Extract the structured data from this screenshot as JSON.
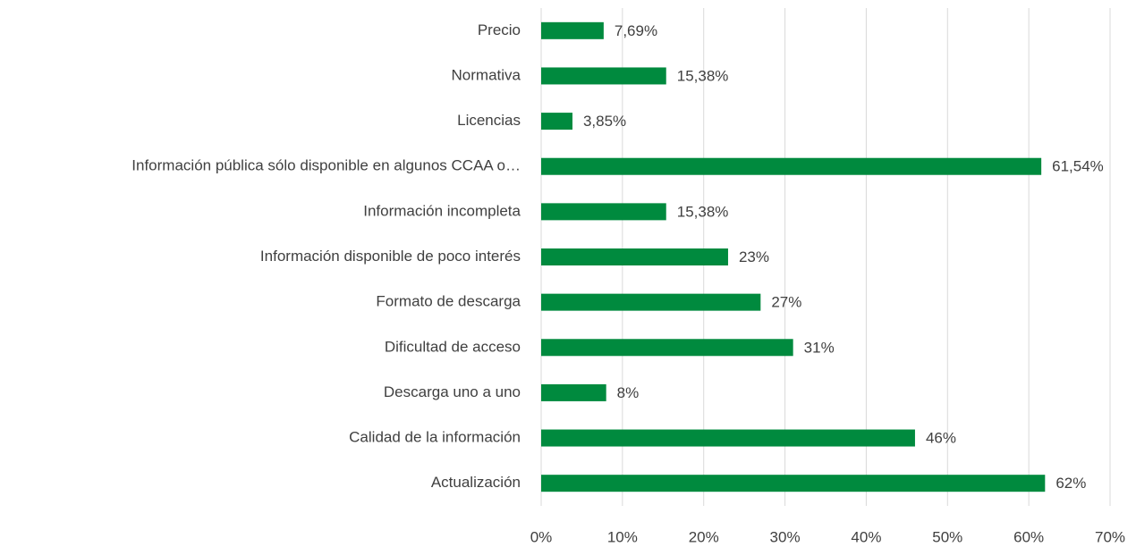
{
  "chart_data": {
    "type": "bar",
    "orientation": "horizontal",
    "categories": [
      "Precio",
      "Normativa",
      "Licencias",
      "Información pública sólo disponible en algunos CCAA o…",
      "Información incompleta",
      "Información disponible de poco interés",
      "Formato de descarga",
      "Dificultad de acceso",
      "Descarga uno a uno",
      "Calidad de la información",
      "Actualización"
    ],
    "values": [
      7.69,
      15.38,
      3.85,
      61.54,
      15.38,
      23,
      27,
      31,
      8,
      46,
      62
    ],
    "value_labels": [
      "7,69%",
      "15,38%",
      "3,85%",
      "61,54%",
      "15,38%",
      "23%",
      "27%",
      "31%",
      "8%",
      "46%",
      "62%"
    ],
    "color": "#008a3e",
    "xlim": [
      0,
      70
    ],
    "xticks": [
      {
        "value": 0,
        "label": "0%"
      },
      {
        "value": 10,
        "label": "10%"
      },
      {
        "value": 20,
        "label": "20%"
      },
      {
        "value": 30,
        "label": "30%"
      },
      {
        "value": 40,
        "label": "40%"
      },
      {
        "value": 50,
        "label": "50%"
      },
      {
        "value": 60,
        "label": "60%"
      },
      {
        "value": 70,
        "label": "70%"
      }
    ],
    "grid": true
  }
}
